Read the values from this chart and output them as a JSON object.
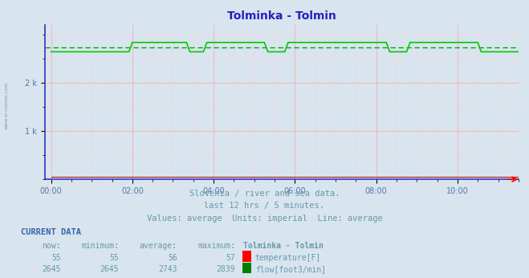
{
  "title": "Tolminka - Tolmin",
  "bg_color": "#d8e4ee",
  "plot_bg_color": "#d8e4ee",
  "grid_color_major": "#ffaaaa",
  "grid_color_minor": "#ffcccc",
  "title_color": "#2222bb",
  "axis_color": "#3333aa",
  "tick_color": "#5577aa",
  "text_color": "#6699aa",
  "flow_color": "#00cc00",
  "flow_avg_color": "#009900",
  "temp_color": "#aa0000",
  "spine_color": "#3333bb",
  "x_tick_labels": [
    "00:00",
    "02:00",
    "04:00",
    "06:00",
    "08:00",
    "10:00"
  ],
  "x_tick_positions": [
    0,
    2,
    4,
    6,
    8,
    10
  ],
  "ylim": [
    0,
    3200
  ],
  "flow_base": 2645,
  "flow_high": 2839,
  "flow_avg": 2743,
  "temp_value": 55,
  "subtitle1": "Slovenia / river and sea data.",
  "subtitle2": "last 12 hrs / 5 minutes.",
  "subtitle3": "Values: average  Units: imperial  Line: average",
  "cur_header": "CURRENT DATA",
  "col_now": "now:",
  "col_min": "minimum:",
  "col_avg": "average:",
  "col_max": "maximum:",
  "station": "Tolminka - Tolmin",
  "temp_now": "55",
  "temp_min": "55",
  "temp_avg": "56",
  "temp_max": "57",
  "flow_now": "2645",
  "flow_min": "2645",
  "flow_avg_val": "2743",
  "flow_max": "2839",
  "label_temp": "temperature[F]",
  "label_flow": "flow[foot3/min]",
  "watermark": "www.si-vreme.com"
}
